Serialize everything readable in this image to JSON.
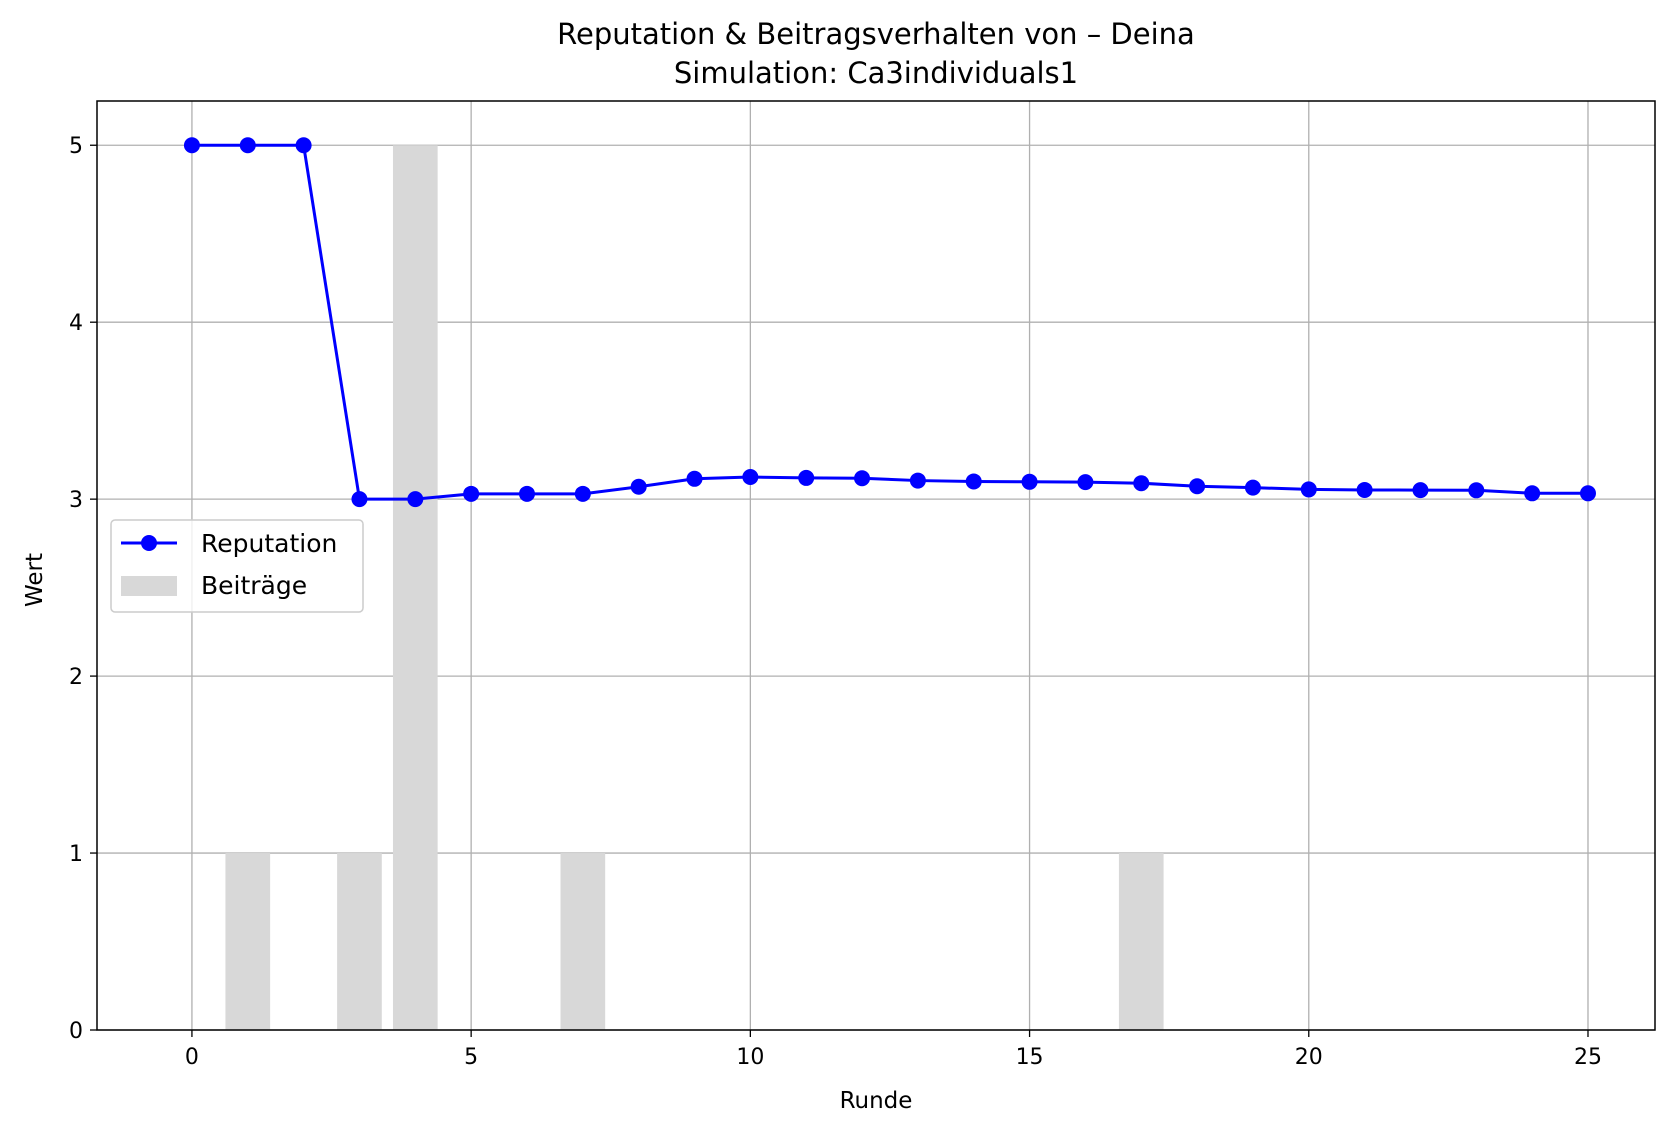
{
  "chart_data": {
    "type": "bar",
    "title": "Reputation & Beitragsverhalten von – Deina",
    "subtitle": "Simulation: Ca3individuals1",
    "xlabel": "Runde",
    "ylabel": "Wert",
    "xlim": [
      -1.7,
      26.2
    ],
    "ylim": [
      0,
      5.25
    ],
    "xticks": [
      0,
      5,
      10,
      15,
      20,
      25
    ],
    "yticks": [
      0,
      1,
      2,
      3,
      4,
      5
    ],
    "grid": true,
    "legend_position": "center-left",
    "series": [
      {
        "name": "Reputation",
        "type": "line",
        "marker": "circle",
        "color": "#0000ff",
        "x": [
          0,
          1,
          2,
          3,
          4,
          5,
          6,
          7,
          8,
          9,
          10,
          11,
          12,
          13,
          14,
          15,
          16,
          17,
          18,
          19,
          20,
          21,
          22,
          23,
          24,
          25
        ],
        "values": [
          5.0,
          5.0,
          5.0,
          3.0,
          3.0,
          3.03,
          3.03,
          3.03,
          3.07,
          3.115,
          3.125,
          3.12,
          3.118,
          3.105,
          3.1,
          3.098,
          3.096,
          3.09,
          3.073,
          3.065,
          3.055,
          3.052,
          3.051,
          3.05,
          3.033,
          3.033
        ]
      },
      {
        "name": "Beiträge",
        "type": "bar",
        "color": "#d8d8d8",
        "x": [
          0,
          1,
          2,
          3,
          4,
          5,
          6,
          7,
          8,
          9,
          10,
          11,
          12,
          13,
          14,
          15,
          16,
          17,
          18,
          19,
          20,
          21,
          22,
          23,
          24,
          25
        ],
        "values": [
          0,
          1,
          0,
          1,
          5,
          0,
          0,
          1,
          0,
          0,
          0,
          0,
          0,
          0,
          0,
          0,
          0,
          1,
          0,
          0,
          0,
          0,
          0,
          0,
          0,
          0
        ],
        "bar_width": 0.8
      }
    ]
  }
}
